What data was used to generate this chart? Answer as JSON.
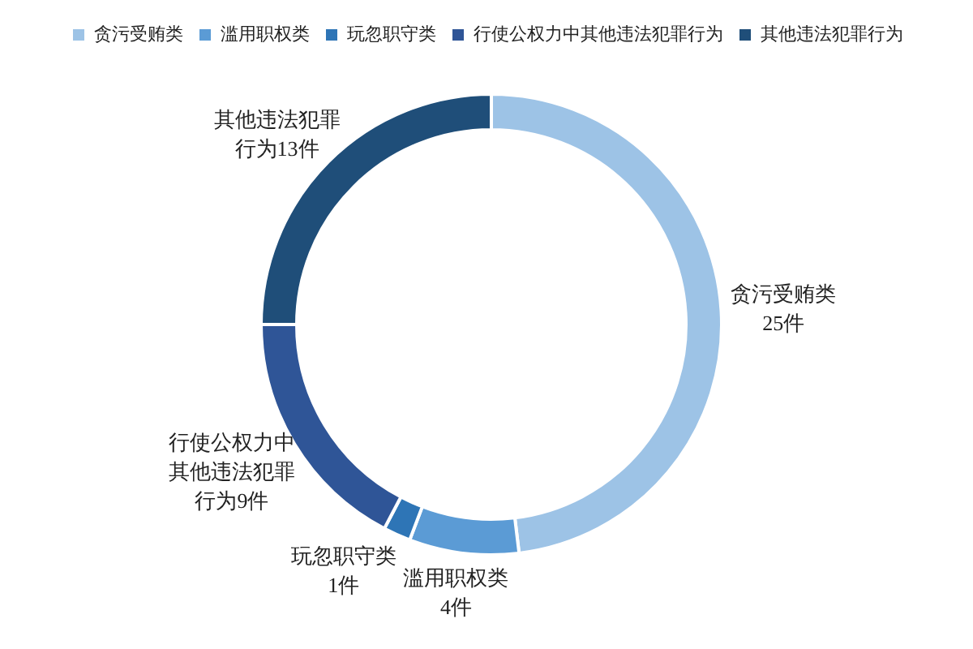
{
  "chart_data": {
    "type": "donut",
    "categories": [
      "贪污受贿类",
      "滥用职权类",
      "玩忽职守类",
      "行使公权力中其他违法犯罪行为",
      "其他违法犯罪行为"
    ],
    "values": [
      25,
      4,
      1,
      9,
      13
    ],
    "colors": [
      "#9dc3e6",
      "#5b9bd5",
      "#2e75b6",
      "#2f5597",
      "#1f4e79"
    ],
    "value_labels": [
      "贪污受贿类25件",
      "滥用职权类4件",
      "玩忽职守类1件",
      "行使公权力中其他违法犯罪行为9件",
      "其他违法犯罪行为13件"
    ],
    "legend": "top"
  }
}
